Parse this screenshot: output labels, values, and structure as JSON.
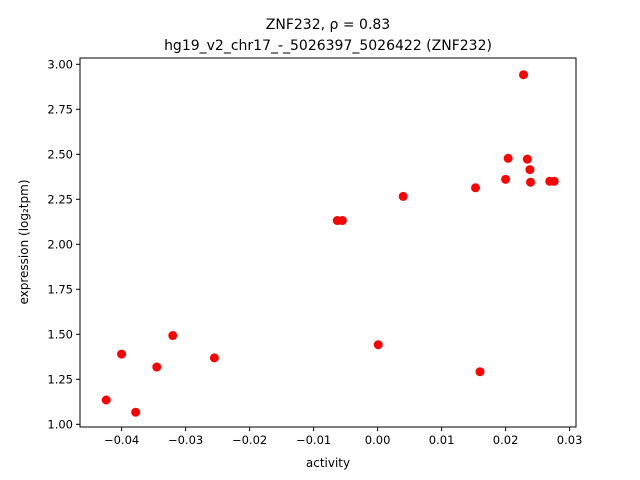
{
  "chart_data": {
    "type": "scatter",
    "title_line1": "ZNF232, ρ = 0.83",
    "title_line2": "hg19_v2_chr17_-_5026397_5026422 (ZNF232)",
    "xlabel": "activity",
    "ylabel": "expression (log₂tpm)",
    "xlim": [
      -0.0465,
      0.031
    ],
    "ylim": [
      0.985,
      3.035
    ],
    "xticks": [
      {
        "value": -0.04,
        "label": "−0.04"
      },
      {
        "value": -0.03,
        "label": "−0.03"
      },
      {
        "value": -0.02,
        "label": "−0.02"
      },
      {
        "value": -0.01,
        "label": "−0.01"
      },
      {
        "value": 0.0,
        "label": "0.00"
      },
      {
        "value": 0.01,
        "label": "0.01"
      },
      {
        "value": 0.02,
        "label": "0.02"
      },
      {
        "value": 0.03,
        "label": "0.03"
      }
    ],
    "yticks": [
      {
        "value": 1.0,
        "label": "1.00"
      },
      {
        "value": 1.25,
        "label": "1.25"
      },
      {
        "value": 1.5,
        "label": "1.50"
      },
      {
        "value": 1.75,
        "label": "1.75"
      },
      {
        "value": 2.0,
        "label": "2.00"
      },
      {
        "value": 2.25,
        "label": "2.25"
      },
      {
        "value": 2.5,
        "label": "2.50"
      },
      {
        "value": 2.75,
        "label": "2.75"
      },
      {
        "value": 3.0,
        "label": "3.00"
      }
    ],
    "grid": false,
    "marker_color": "#ff0000",
    "points": [
      {
        "x": -0.0424,
        "y": 1.135
      },
      {
        "x": -0.04,
        "y": 1.39
      },
      {
        "x": -0.0378,
        "y": 1.067
      },
      {
        "x": -0.0345,
        "y": 1.318
      },
      {
        "x": -0.032,
        "y": 1.493
      },
      {
        "x": -0.0255,
        "y": 1.369
      },
      {
        "x": -0.0063,
        "y": 2.132
      },
      {
        "x": -0.0055,
        "y": 2.132
      },
      {
        "x": 0.0001,
        "y": 1.442
      },
      {
        "x": 0.004,
        "y": 2.266
      },
      {
        "x": 0.0153,
        "y": 2.314
      },
      {
        "x": 0.016,
        "y": 1.292
      },
      {
        "x": 0.02,
        "y": 2.361
      },
      {
        "x": 0.0204,
        "y": 2.478
      },
      {
        "x": 0.0228,
        "y": 2.942
      },
      {
        "x": 0.0234,
        "y": 2.473
      },
      {
        "x": 0.0238,
        "y": 2.415
      },
      {
        "x": 0.0239,
        "y": 2.345
      },
      {
        "x": 0.0269,
        "y": 2.35
      },
      {
        "x": 0.0276,
        "y": 2.35
      }
    ]
  }
}
